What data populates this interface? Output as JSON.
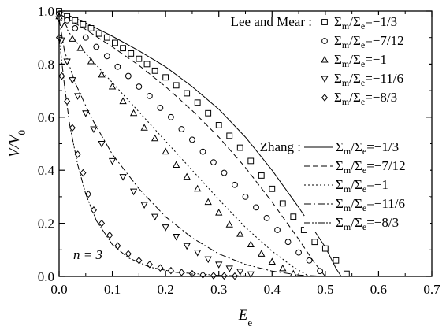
{
  "chart_data": {
    "type": "line",
    "xlabel": "E",
    "xlabel_sub": "e",
    "ylabel": "V/V",
    "ylabel_sub": "0",
    "xlim": [
      0,
      0.7
    ],
    "ylim": [
      0,
      1.0
    ],
    "xticks": [
      "0.0",
      "0.1",
      "0.2",
      "0.3",
      "0.4",
      "0.5",
      "0.6",
      "0.7"
    ],
    "yticks": [
      "0.0",
      "0.2",
      "0.4",
      "0.6",
      "0.8",
      "1.0"
    ],
    "annotation": "n = 3",
    "legend_groups": [
      {
        "title": "Lee and Mear :",
        "kind": "markers"
      },
      {
        "title": "Zhang :",
        "kind": "lines"
      }
    ],
    "series_labels": [
      "Σm/Σe=−1/3",
      "Σm/Σe=−7/12",
      "Σm/Σe=−1",
      "Σm/Σe=−11/6",
      "Σm/Σe=−8/3"
    ],
    "markers": [
      "square",
      "circle",
      "triangle-up",
      "triangle-down",
      "diamond"
    ],
    "dashes": [
      "",
      "7,4",
      "2,3",
      "9,3,2,3",
      "8,2,2,2,2,2"
    ],
    "lee_mear": [
      [
        [
          0.0,
          1.0
        ],
        [
          0.015,
          0.98
        ],
        [
          0.03,
          0.965
        ],
        [
          0.045,
          0.95
        ],
        [
          0.06,
          0.935
        ],
        [
          0.075,
          0.915
        ],
        [
          0.09,
          0.9
        ],
        [
          0.105,
          0.88
        ],
        [
          0.12,
          0.86
        ],
        [
          0.135,
          0.84
        ],
        [
          0.15,
          0.82
        ],
        [
          0.165,
          0.8
        ],
        [
          0.18,
          0.775
        ],
        [
          0.2,
          0.75
        ],
        [
          0.22,
          0.72
        ],
        [
          0.24,
          0.69
        ],
        [
          0.26,
          0.655
        ],
        [
          0.28,
          0.615
        ],
        [
          0.3,
          0.57
        ],
        [
          0.32,
          0.53
        ],
        [
          0.34,
          0.485
        ],
        [
          0.36,
          0.435
        ],
        [
          0.38,
          0.38
        ],
        [
          0.4,
          0.33
        ],
        [
          0.42,
          0.275
        ],
        [
          0.44,
          0.225
        ],
        [
          0.46,
          0.175
        ],
        [
          0.48,
          0.13
        ],
        [
          0.5,
          0.105
        ],
        [
          0.52,
          0.06
        ],
        [
          0.54,
          0.01
        ]
      ],
      [
        [
          0.0,
          0.99
        ],
        [
          0.015,
          0.965
        ],
        [
          0.03,
          0.935
        ],
        [
          0.05,
          0.9
        ],
        [
          0.07,
          0.865
        ],
        [
          0.09,
          0.83
        ],
        [
          0.11,
          0.79
        ],
        [
          0.13,
          0.755
        ],
        [
          0.15,
          0.715
        ],
        [
          0.17,
          0.68
        ],
        [
          0.19,
          0.635
        ],
        [
          0.21,
          0.6
        ],
        [
          0.23,
          0.555
        ],
        [
          0.25,
          0.515
        ],
        [
          0.27,
          0.47
        ],
        [
          0.29,
          0.43
        ],
        [
          0.31,
          0.39
        ],
        [
          0.33,
          0.345
        ],
        [
          0.35,
          0.3
        ],
        [
          0.37,
          0.26
        ],
        [
          0.39,
          0.22
        ],
        [
          0.41,
          0.175
        ],
        [
          0.43,
          0.13
        ],
        [
          0.45,
          0.09
        ],
        [
          0.47,
          0.06
        ],
        [
          0.49,
          0.02
        ]
      ],
      [
        [
          0.0,
          0.98
        ],
        [
          0.01,
          0.945
        ],
        [
          0.025,
          0.895
        ],
        [
          0.04,
          0.86
        ],
        [
          0.06,
          0.81
        ],
        [
          0.08,
          0.76
        ],
        [
          0.1,
          0.715
        ],
        [
          0.12,
          0.66
        ],
        [
          0.14,
          0.615
        ],
        [
          0.16,
          0.56
        ],
        [
          0.18,
          0.52
        ],
        [
          0.2,
          0.47
        ],
        [
          0.22,
          0.42
        ],
        [
          0.24,
          0.375
        ],
        [
          0.26,
          0.33
        ],
        [
          0.28,
          0.28
        ],
        [
          0.3,
          0.24
        ],
        [
          0.32,
          0.195
        ],
        [
          0.34,
          0.16
        ],
        [
          0.36,
          0.12
        ],
        [
          0.38,
          0.085
        ],
        [
          0.4,
          0.055
        ],
        [
          0.42,
          0.03
        ],
        [
          0.44,
          0.01
        ]
      ],
      [
        [
          0.0,
          0.97
        ],
        [
          0.005,
          0.89
        ],
        [
          0.015,
          0.81
        ],
        [
          0.025,
          0.74
        ],
        [
          0.035,
          0.68
        ],
        [
          0.05,
          0.615
        ],
        [
          0.065,
          0.555
        ],
        [
          0.08,
          0.5
        ],
        [
          0.1,
          0.435
        ],
        [
          0.12,
          0.375
        ],
        [
          0.14,
          0.32
        ],
        [
          0.16,
          0.27
        ],
        [
          0.18,
          0.225
        ],
        [
          0.2,
          0.185
        ],
        [
          0.22,
          0.15
        ],
        [
          0.24,
          0.115
        ],
        [
          0.26,
          0.09
        ],
        [
          0.28,
          0.065
        ],
        [
          0.3,
          0.045
        ],
        [
          0.32,
          0.03
        ],
        [
          0.34,
          0.018
        ],
        [
          0.36,
          0.008
        ]
      ],
      [
        [
          0.0,
          0.9
        ],
        [
          0.005,
          0.755
        ],
        [
          0.015,
          0.66
        ],
        [
          0.025,
          0.56
        ],
        [
          0.035,
          0.46
        ],
        [
          0.045,
          0.39
        ],
        [
          0.055,
          0.31
        ],
        [
          0.065,
          0.25
        ],
        [
          0.08,
          0.2
        ],
        [
          0.095,
          0.155
        ],
        [
          0.11,
          0.115
        ],
        [
          0.13,
          0.085
        ],
        [
          0.15,
          0.06
        ],
        [
          0.17,
          0.045
        ],
        [
          0.19,
          0.032
        ],
        [
          0.21,
          0.022
        ],
        [
          0.23,
          0.015
        ],
        [
          0.25,
          0.01
        ],
        [
          0.27,
          0.006
        ],
        [
          0.29,
          0.003
        ],
        [
          0.31,
          0.002
        ],
        [
          0.33,
          0.001
        ]
      ]
    ],
    "zhang": [
      [
        [
          0.0,
          1.0
        ],
        [
          0.05,
          0.955
        ],
        [
          0.1,
          0.905
        ],
        [
          0.15,
          0.85
        ],
        [
          0.2,
          0.79
        ],
        [
          0.25,
          0.715
        ],
        [
          0.3,
          0.63
        ],
        [
          0.35,
          0.525
        ],
        [
          0.4,
          0.4
        ],
        [
          0.45,
          0.26
        ],
        [
          0.5,
          0.11
        ],
        [
          0.52,
          0.03
        ],
        [
          0.53,
          0.0
        ]
      ],
      [
        [
          0.0,
          0.99
        ],
        [
          0.05,
          0.93
        ],
        [
          0.1,
          0.865
        ],
        [
          0.15,
          0.795
        ],
        [
          0.2,
          0.715
        ],
        [
          0.25,
          0.625
        ],
        [
          0.3,
          0.525
        ],
        [
          0.35,
          0.41
        ],
        [
          0.4,
          0.28
        ],
        [
          0.45,
          0.14
        ],
        [
          0.48,
          0.05
        ],
        [
          0.5,
          0.0
        ]
      ],
      [
        [
          0.0,
          0.98
        ],
        [
          0.02,
          0.915
        ],
        [
          0.05,
          0.84
        ],
        [
          0.1,
          0.73
        ],
        [
          0.15,
          0.62
        ],
        [
          0.2,
          0.51
        ],
        [
          0.25,
          0.4
        ],
        [
          0.3,
          0.29
        ],
        [
          0.35,
          0.185
        ],
        [
          0.4,
          0.095
        ],
        [
          0.44,
          0.035
        ],
        [
          0.47,
          0.0
        ]
      ],
      [
        [
          0.0,
          0.97
        ],
        [
          0.01,
          0.85
        ],
        [
          0.03,
          0.73
        ],
        [
          0.06,
          0.6
        ],
        [
          0.1,
          0.46
        ],
        [
          0.15,
          0.33
        ],
        [
          0.2,
          0.225
        ],
        [
          0.25,
          0.145
        ],
        [
          0.3,
          0.085
        ],
        [
          0.35,
          0.045
        ],
        [
          0.4,
          0.02
        ],
        [
          0.45,
          0.005
        ],
        [
          0.5,
          0.0
        ]
      ],
      [
        [
          0.0,
          0.9
        ],
        [
          0.01,
          0.72
        ],
        [
          0.02,
          0.57
        ],
        [
          0.035,
          0.42
        ],
        [
          0.05,
          0.31
        ],
        [
          0.07,
          0.21
        ],
        [
          0.1,
          0.12
        ],
        [
          0.13,
          0.07
        ],
        [
          0.17,
          0.035
        ],
        [
          0.22,
          0.015
        ],
        [
          0.3,
          0.004
        ],
        [
          0.4,
          0.0
        ]
      ]
    ]
  }
}
